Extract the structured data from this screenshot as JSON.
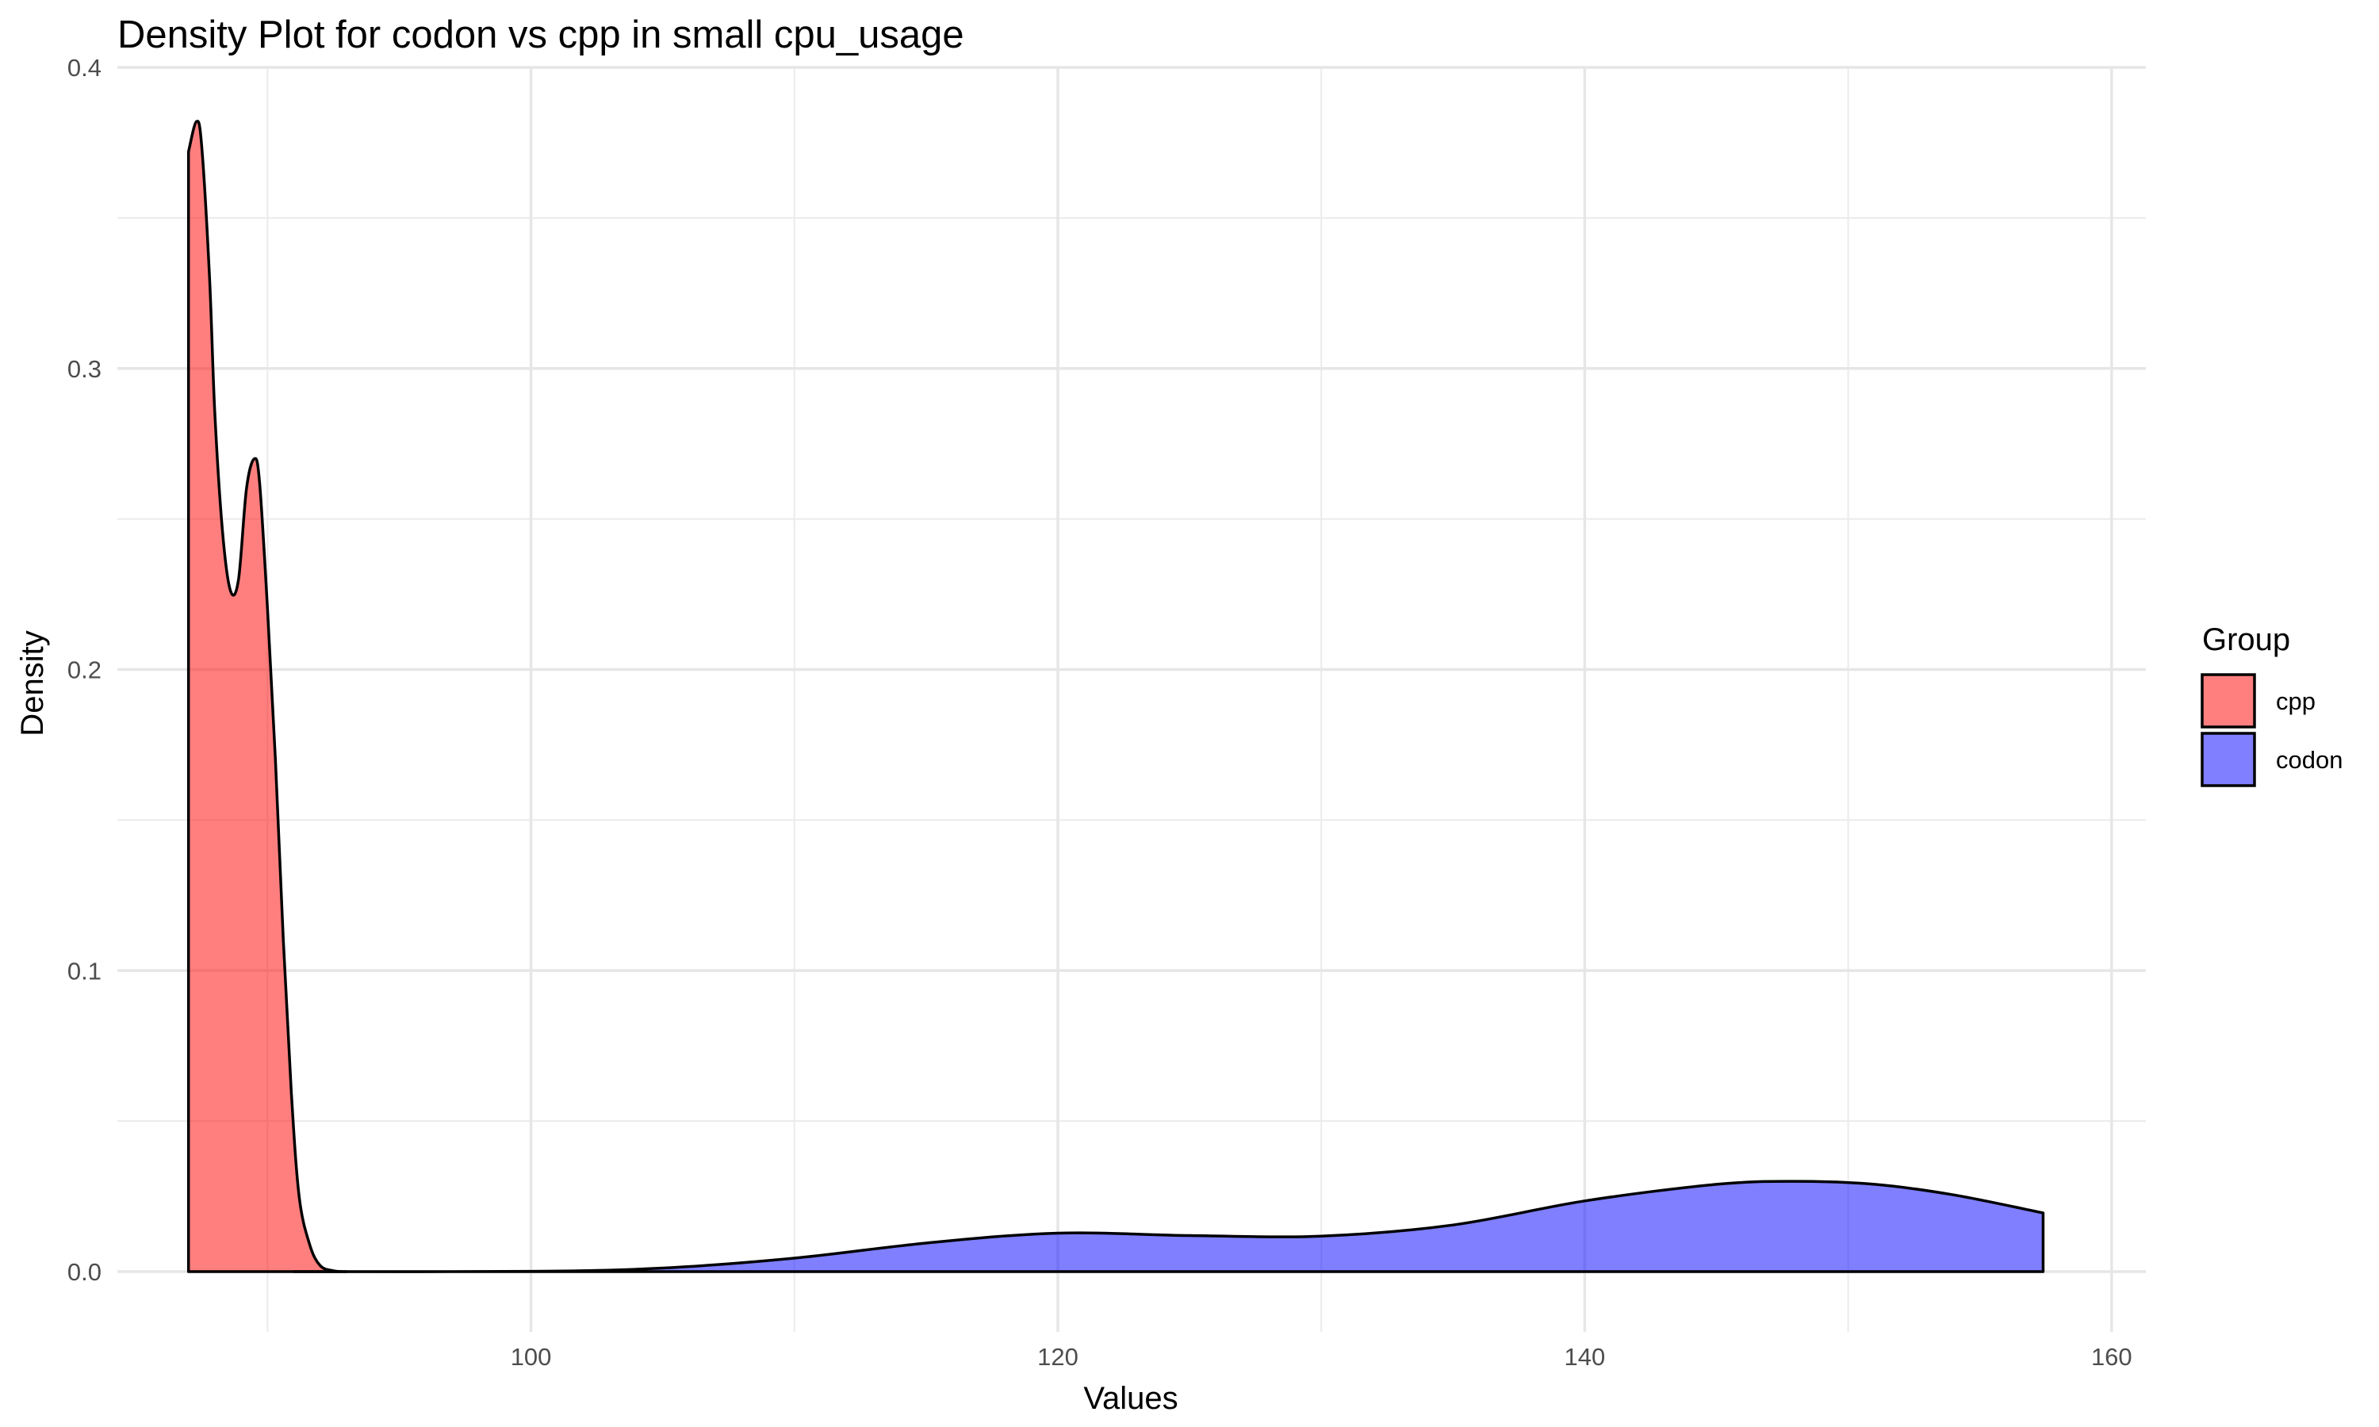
{
  "chart_data": {
    "type": "area",
    "title": "Density Plot for codon vs cpp in small cpu_usage",
    "xlabel": "Values",
    "ylabel": "Density",
    "xlim": [
      84.3,
      161.3
    ],
    "ylim": [
      -0.02,
      0.4
    ],
    "x_ticks": [
      100,
      120,
      140,
      160
    ],
    "x_tick_labels": [
      "100",
      "120",
      "140",
      "160"
    ],
    "y_ticks": [
      0.0,
      0.1,
      0.2,
      0.3,
      0.4
    ],
    "y_tick_labels": [
      "0.0",
      "0.1",
      "0.2",
      "0.3",
      "0.4"
    ],
    "grid": true,
    "legend": {
      "title": "Group",
      "position": "right",
      "entries": [
        "cpp",
        "codon"
      ]
    },
    "series": [
      {
        "name": "cpp",
        "color": "#ff0000",
        "alpha": 0.5,
        "points": [
          [
            87.0,
            0.372
          ],
          [
            87.3,
            0.382
          ],
          [
            87.5,
            0.374
          ],
          [
            87.8,
            0.33
          ],
          [
            88.0,
            0.285
          ],
          [
            88.3,
            0.245
          ],
          [
            88.6,
            0.226
          ],
          [
            88.9,
            0.23
          ],
          [
            89.2,
            0.26
          ],
          [
            89.5,
            0.27
          ],
          [
            89.7,
            0.262
          ],
          [
            90.0,
            0.22
          ],
          [
            90.3,
            0.17
          ],
          [
            90.6,
            0.11
          ],
          [
            90.9,
            0.06
          ],
          [
            91.2,
            0.025
          ],
          [
            91.6,
            0.009
          ],
          [
            92.0,
            0.002
          ],
          [
            92.5,
            0.0003
          ],
          [
            93.0,
            0.0
          ]
        ]
      },
      {
        "name": "codon",
        "color": "#0000ff",
        "alpha": 0.5,
        "points": [
          [
            91.0,
            0.0
          ],
          [
            100.0,
            0.0001
          ],
          [
            105.0,
            0.0012
          ],
          [
            110.0,
            0.0045
          ],
          [
            115.0,
            0.0095
          ],
          [
            120.0,
            0.0128
          ],
          [
            125.0,
            0.012
          ],
          [
            130.0,
            0.0118
          ],
          [
            135.0,
            0.0155
          ],
          [
            140.0,
            0.0235
          ],
          [
            145.0,
            0.029
          ],
          [
            148.0,
            0.03
          ],
          [
            151.0,
            0.029
          ],
          [
            154.0,
            0.0255
          ],
          [
            157.4,
            0.0195
          ]
        ]
      }
    ]
  }
}
